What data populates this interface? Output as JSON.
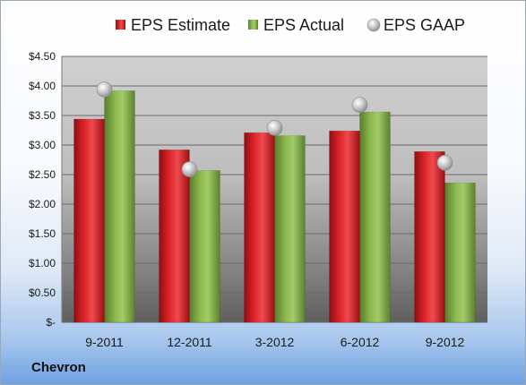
{
  "company": "Chevron",
  "chart_data": {
    "type": "bar",
    "categories": [
      "9-2011",
      "12-2011",
      "3-2012",
      "6-2012",
      "9-2012"
    ],
    "series": [
      {
        "name": "EPS Estimate",
        "type": "bar",
        "color": "#c0161c",
        "values": [
          3.44,
          2.92,
          3.21,
          3.24,
          2.89
        ]
      },
      {
        "name": "EPS Actual",
        "type": "bar",
        "color": "#7da543",
        "values": [
          3.92,
          2.57,
          3.16,
          3.56,
          2.36
        ]
      },
      {
        "name": "EPS GAAP",
        "type": "scatter",
        "color": "#b8b8b8",
        "values": [
          3.94,
          2.59,
          3.29,
          3.68,
          2.7
        ]
      }
    ],
    "ylim": [
      0,
      4.5
    ],
    "yticks": [
      0,
      0.5,
      1.0,
      1.5,
      2.0,
      2.5,
      3.0,
      3.5,
      4.0,
      4.5
    ],
    "ytick_labels": [
      "$-",
      "$0.50",
      "$1.00",
      "$1.50",
      "$2.00",
      "$2.50",
      "$3.00",
      "$3.50",
      "$4.00",
      "$4.50"
    ],
    "grid": true,
    "legend": "top"
  }
}
